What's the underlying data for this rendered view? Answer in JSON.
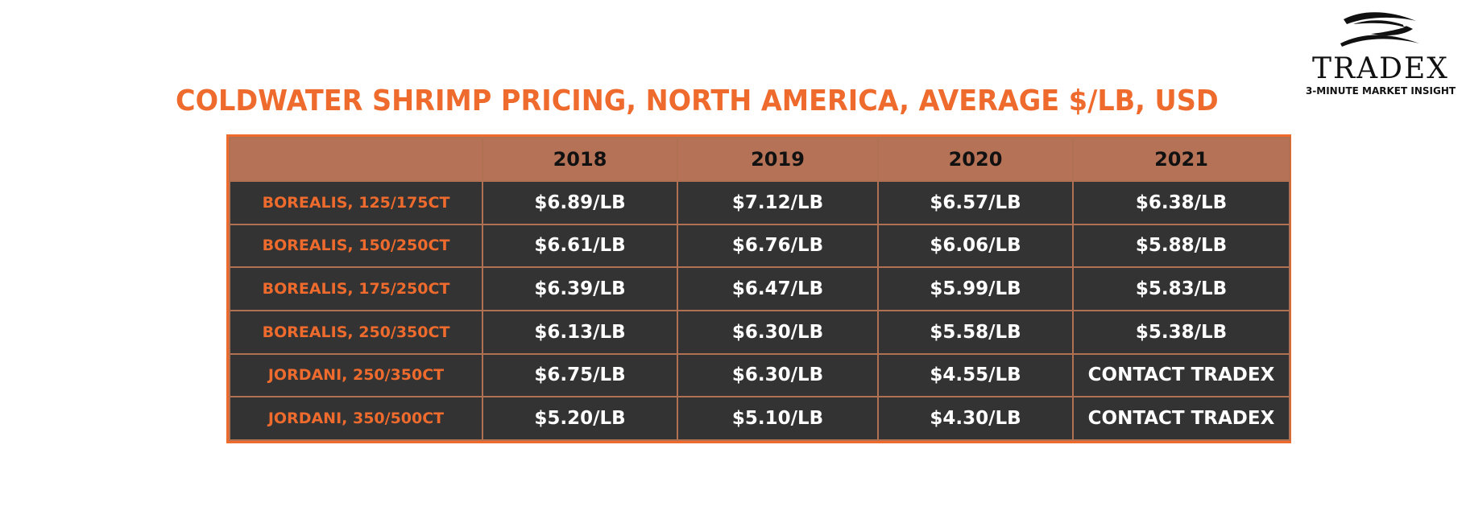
{
  "chart_data": {
    "type": "table",
    "title": "COLDWATER SHRIMP PRICING, NORTH AMERICA, AVERAGE $/LB, USD",
    "columns": [
      "",
      "2018",
      "2019",
      "2020",
      "2021"
    ],
    "rows": [
      {
        "label": "BOREALIS, 125/175CT",
        "values": [
          "$6.89/LB",
          "$7.12/LB",
          "$6.57/LB",
          "$6.38/LB"
        ]
      },
      {
        "label": "BOREALIS, 150/250CT",
        "values": [
          "$6.61/LB",
          "$6.76/LB",
          "$6.06/LB",
          "$5.88/LB"
        ]
      },
      {
        "label": "BOREALIS, 175/250CT",
        "values": [
          "$6.39/LB",
          "$6.47/LB",
          "$5.99/LB",
          "$5.83/LB"
        ]
      },
      {
        "label": "BOREALIS, 250/350CT",
        "values": [
          "$6.13/LB",
          "$6.30/LB",
          "$5.58/LB",
          "$5.38/LB"
        ]
      },
      {
        "label": "JORDANI, 250/350CT",
        "values": [
          "$6.75/LB",
          "$6.30/LB",
          "$4.55/LB",
          "CONTACT TRADEX"
        ]
      },
      {
        "label": "JORDANI, 350/500CT",
        "values": [
          "$5.20/LB",
          "$5.10/LB",
          "$4.30/LB",
          "CONTACT TRADEX"
        ]
      }
    ]
  },
  "logo": {
    "word": "TRADEX",
    "tagline": "3-MINUTE MARKET INSIGHT",
    "icon": "fish-icon"
  },
  "colors": {
    "accent": "#ee6b2d",
    "header_bg": "#b57257",
    "cell_bg": "#333333",
    "cell_text": "#ffffff"
  }
}
